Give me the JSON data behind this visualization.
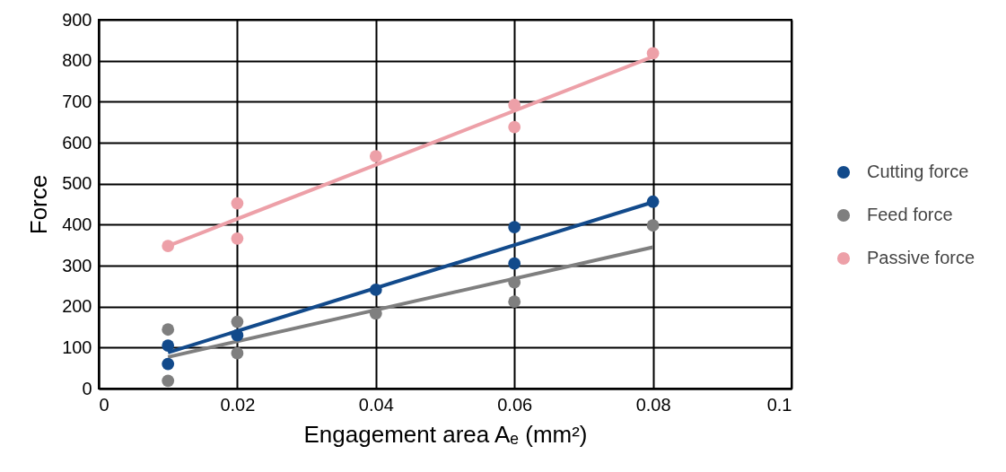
{
  "chart_data": {
    "type": "scatter",
    "xlabel": "Engagement area Aₑ (mm²)",
    "ylabel": "Force",
    "xlim": [
      0,
      0.1
    ],
    "xticks": [
      0,
      0.02,
      0.04,
      0.06,
      0.08,
      0.1
    ],
    "ylim": [
      0,
      900
    ],
    "yticks": [
      0,
      100,
      200,
      300,
      400,
      500,
      600,
      700,
      800,
      900
    ],
    "grid": true,
    "legend": "right",
    "series": [
      {
        "name": "Cutting force",
        "marker": "circle",
        "color": "#124a8b",
        "x": [
          0.01,
          0.01,
          0.02,
          0.04,
          0.06,
          0.06,
          0.08
        ],
        "values": [
          105,
          60,
          130,
          241,
          394,
          305,
          456
        ]
      },
      {
        "name": "Feed force",
        "marker": "circle",
        "color": "#7f7f7f",
        "x": [
          0.01,
          0.01,
          0.02,
          0.02,
          0.04,
          0.06,
          0.06,
          0.08
        ],
        "values": [
          144,
          19,
          163,
          86,
          183,
          259,
          212,
          398
        ]
      },
      {
        "name": "Passive force",
        "marker": "circle",
        "color": "#eda0a8",
        "x": [
          0.01,
          0.02,
          0.02,
          0.04,
          0.06,
          0.06,
          0.08
        ],
        "values": [
          348,
          452,
          366,
          567,
          692,
          638,
          818
        ]
      },
      {
        "type": "line",
        "color": "#124a8b",
        "x": [
          0.01,
          0.08
        ],
        "values": [
          88,
          455
        ]
      },
      {
        "type": "line",
        "color": "#7f7f7f",
        "x": [
          0.01,
          0.08
        ],
        "values": [
          77,
          345
        ]
      },
      {
        "type": "line",
        "color": "#eda0a8",
        "x": [
          0.01,
          0.08
        ],
        "values": [
          348,
          810
        ]
      }
    ]
  }
}
